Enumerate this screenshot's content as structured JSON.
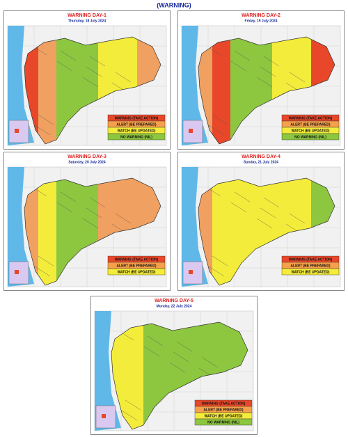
{
  "title": "(WARNING)",
  "panels": [
    {
      "title": "WARNING DAY-1",
      "date": "Thursday, 18 July 2024",
      "zones": [
        "#e8472a",
        "#f0a060",
        "#8dc63f",
        "#f3ec3a",
        "#f0a060"
      ],
      "legend": [
        {
          "label": "WARNING (TAKE ACTION)",
          "color": "#e8472a"
        },
        {
          "label": "ALERT (BE PREPARED)",
          "color": "#f5a04a"
        },
        {
          "label": "WATCH (BE UPDATED)",
          "color": "#f3ec3a"
        },
        {
          "label": "NO WARNING (NIL)",
          "color": "#8dc63f"
        }
      ]
    },
    {
      "title": "WARNING DAY-2",
      "date": "Friday, 19 July 2024",
      "zones": [
        "#f0a060",
        "#e8472a",
        "#8dc63f",
        "#f3ec3a",
        "#e8472a"
      ],
      "legend": [
        {
          "label": "WARNING (TAKE ACTION)",
          "color": "#e8472a"
        },
        {
          "label": "ALERT (BE PREPARED)",
          "color": "#f5a04a"
        },
        {
          "label": "WATCH (BE UPDATED)",
          "color": "#f3ec3a"
        },
        {
          "label": "NO WARNING (NIL)",
          "color": "#8dc63f"
        }
      ]
    },
    {
      "title": "WARNING DAY-3",
      "date": "Saturday, 20 July 2024",
      "zones": [
        "#f0a060",
        "#f3ec3a",
        "#8dc63f",
        "#f0a060",
        "#f0a060"
      ],
      "legend": [
        {
          "label": "WARNING (TAKE ACTION)",
          "color": "#e8472a"
        },
        {
          "label": "ALERT (BE PREPARED)",
          "color": "#f5a04a"
        },
        {
          "label": "WATCH (BE UPDATED)",
          "color": "#f3ec3a"
        }
      ]
    },
    {
      "title": "WARNING DAY-4",
      "date": "Sunday, 21 July 2024",
      "zones": [
        "#f0a060",
        "#f3ec3a",
        "#f3ec3a",
        "#f3ec3a",
        "#8dc63f"
      ],
      "legend": [
        {
          "label": "WARNING (TAKE ACTION)",
          "color": "#e8472a"
        },
        {
          "label": "ALERT (BE PREPARED)",
          "color": "#f5a04a"
        },
        {
          "label": "WATCH (BE UPDATED)",
          "color": "#f3ec3a"
        }
      ]
    },
    {
      "title": "WARNING DAY-5",
      "date": "Monday, 22 July 2024",
      "zones": [
        "#f3ec3a",
        "#f3ec3a",
        "#8dc63f",
        "#8dc63f",
        "#8dc63f"
      ],
      "legend": [
        {
          "label": "WARNING (TAKE ACTION)",
          "color": "#e8472a"
        },
        {
          "label": "ALERT (BE PREPARED)",
          "color": "#f5a04a"
        },
        {
          "label": "WATCH (BE UPDATED)",
          "color": "#f3ec3a"
        },
        {
          "label": "NO WARNING (NIL)",
          "color": "#8dc63f"
        }
      ]
    }
  ]
}
